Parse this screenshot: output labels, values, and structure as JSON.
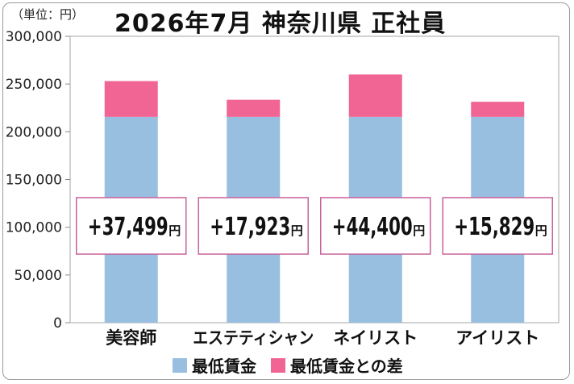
{
  "unit_label": "（単位：円）",
  "chart_data": {
    "type": "bar",
    "stacked": true,
    "title": "2026年7月 神奈川県 正社員",
    "categories": [
      "美容師",
      "エステティシャン",
      "ネイリスト",
      "アイリスト"
    ],
    "series": [
      {
        "name": "最低賃金",
        "color": "#98bfe0",
        "values": [
          215600,
          215600,
          215600,
          215600
        ]
      },
      {
        "name": "最低賃金との差",
        "color": "#f06593",
        "values": [
          37499,
          17923,
          44400,
          15829
        ]
      }
    ],
    "annotations": [
      "+37,499",
      "+17,923",
      "+44,400",
      "+15,829"
    ],
    "annotation_unit": "円",
    "ylim": [
      0,
      300000
    ],
    "yticks": [
      "0",
      "50,000",
      "100,000",
      "150,000",
      "200,000",
      "250,000",
      "300,000"
    ],
    "grid": false,
    "legend_position": "bottom"
  }
}
